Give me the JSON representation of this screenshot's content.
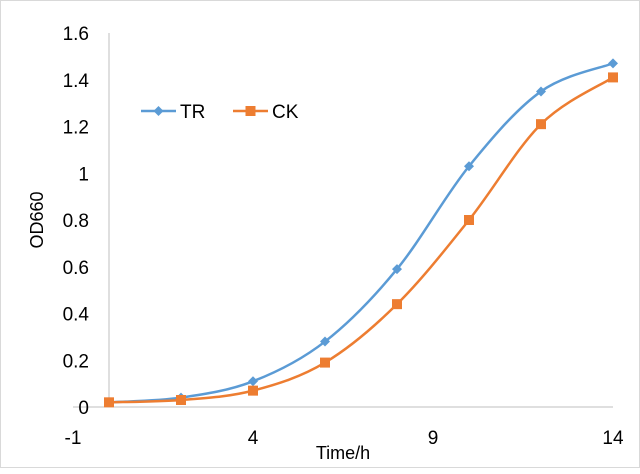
{
  "chart_data": {
    "type": "line",
    "title": "",
    "xlabel": "Time/h",
    "ylabel": "OD660",
    "xlim": [
      -1,
      14
    ],
    "ylim": [
      0,
      1.6
    ],
    "x_ticks": [
      "-1",
      "4",
      "9",
      "14"
    ],
    "y_ticks": [
      "0",
      "0.2",
      "0.4",
      "0.6",
      "0.8",
      "1",
      "1.2",
      "1.4",
      "1.6"
    ],
    "grid": false,
    "smooth": true,
    "legend_position": "top-left",
    "x": [
      0,
      2,
      4,
      6,
      8,
      10,
      12,
      14
    ],
    "series": [
      {
        "name": "TR",
        "color": "#5B9BD5",
        "marker": "diamond",
        "values": [
          0.02,
          0.04,
          0.11,
          0.28,
          0.59,
          1.03,
          1.35,
          1.47
        ]
      },
      {
        "name": "CK",
        "color": "#ED7D31",
        "marker": "square",
        "values": [
          0.02,
          0.03,
          0.07,
          0.19,
          0.44,
          0.8,
          1.21,
          1.41
        ]
      }
    ]
  }
}
